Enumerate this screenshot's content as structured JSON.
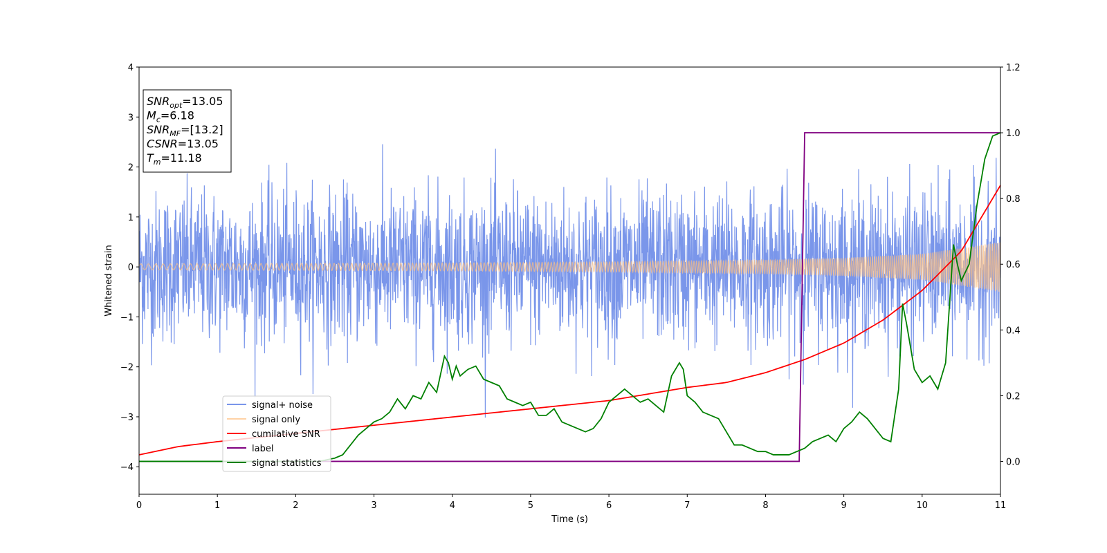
{
  "chart_data": {
    "type": "line",
    "xlabel": "Time (s)",
    "ylabel": "Whitened strain",
    "xlim": [
      0,
      11
    ],
    "ylim": [
      -4.55,
      4.0
    ],
    "y2lim": [
      -0.1,
      1.2
    ],
    "x_ticks": [
      "0",
      "1",
      "2",
      "3",
      "4",
      "5",
      "6",
      "7",
      "8",
      "9",
      "10",
      "11"
    ],
    "y_ticks": [
      "4",
      "3",
      "2",
      "1",
      "0",
      "−1",
      "−2",
      "−3",
      "−4"
    ],
    "y2_ticks": [
      "1.2",
      "1.0",
      "0.8",
      "0.6",
      "0.4",
      "0.2",
      "0.0"
    ],
    "legend_position": "lower-left",
    "stats": [
      {
        "sym": "SNR",
        "sub": "opt",
        "value": "=13.05"
      },
      {
        "sym": "M",
        "sub": "c",
        "value": "=6.18"
      },
      {
        "sym": "SNR",
        "sub": "MF",
        "value": "=[13.2]"
      },
      {
        "sym": "CSNR",
        "sub": "",
        "value": "=13.05"
      },
      {
        "sym": "T",
        "sub": "m",
        "value": "=11.18"
      }
    ],
    "series": [
      {
        "name": "signal+ noise",
        "color": "#4169e1",
        "axis": "left",
        "description": "noise band, approx amplitude",
        "envelope": {
          "x": [
            0,
            11
          ],
          "typical_abs": 1.2,
          "max_abs": 3.6
        }
      },
      {
        "name": "signal only",
        "color": "#ffbf7f",
        "axis": "left",
        "amplitude": {
          "x": [
            0,
            2,
            4,
            6,
            8,
            9,
            10,
            11
          ],
          "y": [
            0.06,
            0.07,
            0.08,
            0.1,
            0.14,
            0.18,
            0.26,
            0.5
          ]
        }
      },
      {
        "name": "cumilative SNR",
        "color": "#ff0000",
        "axis": "right",
        "x": [
          0,
          0.5,
          1,
          2,
          3,
          4,
          5,
          6,
          7,
          7.5,
          8,
          8.5,
          9,
          9.5,
          10,
          10.5,
          11
        ],
        "y": [
          0.02,
          0.045,
          0.06,
          0.085,
          0.11,
          0.135,
          0.16,
          0.185,
          0.225,
          0.24,
          0.27,
          0.31,
          0.36,
          0.43,
          0.52,
          0.64,
          0.84
        ]
      },
      {
        "name": "label",
        "color": "#800080",
        "axis": "right",
        "x": [
          0,
          8.43,
          8.5,
          11
        ],
        "y": [
          0.0,
          0.0,
          1.0,
          1.0
        ]
      },
      {
        "name": "signal statistics",
        "color": "#008000",
        "axis": "right",
        "x": [
          0,
          2.3,
          2.5,
          2.6,
          2.7,
          2.8,
          2.9,
          3.0,
          3.1,
          3.2,
          3.3,
          3.4,
          3.5,
          3.6,
          3.7,
          3.8,
          3.9,
          3.95,
          4.0,
          4.05,
          4.1,
          4.2,
          4.3,
          4.4,
          4.5,
          4.6,
          4.7,
          4.8,
          4.9,
          5.0,
          5.1,
          5.2,
          5.3,
          5.4,
          5.5,
          5.6,
          5.7,
          5.8,
          5.9,
          6.0,
          6.1,
          6.2,
          6.25,
          6.3,
          6.4,
          6.5,
          6.6,
          6.7,
          6.8,
          6.9,
          6.95,
          7.0,
          7.1,
          7.2,
          7.3,
          7.4,
          7.5,
          7.6,
          7.7,
          7.8,
          7.9,
          8.0,
          8.1,
          8.2,
          8.3,
          8.4,
          8.5,
          8.6,
          8.7,
          8.8,
          8.9,
          9.0,
          9.1,
          9.2,
          9.3,
          9.4,
          9.5,
          9.6,
          9.7,
          9.75,
          9.8,
          9.9,
          10.0,
          10.1,
          10.2,
          10.3,
          10.35,
          10.4,
          10.45,
          10.5,
          10.6,
          10.7,
          10.8,
          10.9,
          11.0
        ],
        "y": [
          0.0,
          0.0,
          0.01,
          0.02,
          0.05,
          0.08,
          0.1,
          0.12,
          0.13,
          0.15,
          0.19,
          0.16,
          0.2,
          0.19,
          0.24,
          0.21,
          0.32,
          0.3,
          0.25,
          0.29,
          0.26,
          0.28,
          0.29,
          0.25,
          0.24,
          0.23,
          0.19,
          0.18,
          0.17,
          0.18,
          0.14,
          0.14,
          0.16,
          0.12,
          0.11,
          0.1,
          0.09,
          0.1,
          0.13,
          0.18,
          0.2,
          0.22,
          0.21,
          0.2,
          0.18,
          0.19,
          0.17,
          0.15,
          0.26,
          0.3,
          0.28,
          0.2,
          0.18,
          0.15,
          0.14,
          0.13,
          0.09,
          0.05,
          0.05,
          0.04,
          0.03,
          0.03,
          0.02,
          0.02,
          0.02,
          0.03,
          0.04,
          0.06,
          0.07,
          0.08,
          0.06,
          0.1,
          0.12,
          0.15,
          0.13,
          0.1,
          0.07,
          0.06,
          0.22,
          0.48,
          0.42,
          0.28,
          0.24,
          0.26,
          0.22,
          0.3,
          0.48,
          0.66,
          0.6,
          0.55,
          0.6,
          0.78,
          0.92,
          0.99,
          1.0
        ]
      }
    ]
  }
}
